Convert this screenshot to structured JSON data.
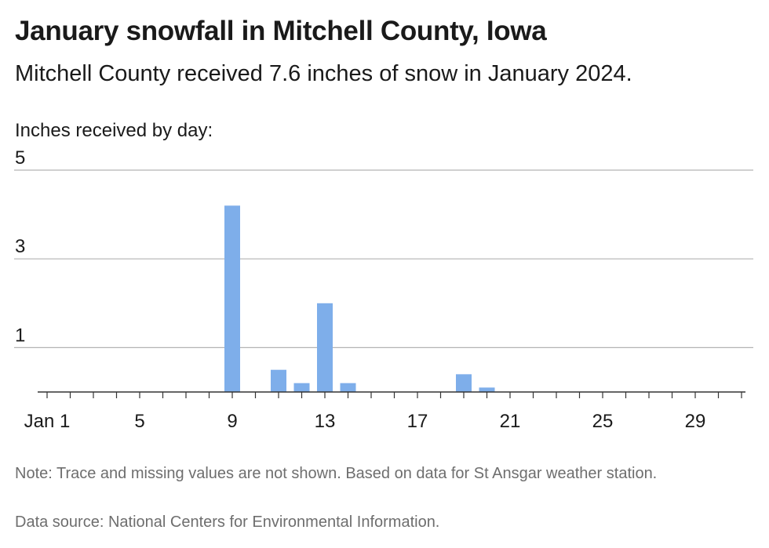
{
  "header": {
    "title": "January snowfall in Mitchell County, Iowa",
    "subtitle": "Mitchell County received 7.6 inches of snow in January 2024."
  },
  "footer": {
    "note": "Note: Trace and missing values are not shown. Based on data for St Ansgar weather station.",
    "source": "Data source: National Centers for Environmental Information."
  },
  "chart_data": {
    "type": "bar",
    "title": "January snowfall in Mitchell County, Iowa",
    "subtitle": "Mitchell County received 7.6 inches of snow in January 2024.",
    "ylabel": "Inches received by day:",
    "xlabel": "",
    "ylim": [
      0,
      5
    ],
    "xlim": [
      1,
      31
    ],
    "y_ticks": [
      1,
      3,
      5
    ],
    "x_ticks": [
      1,
      5,
      9,
      13,
      17,
      21,
      25,
      29
    ],
    "x_tick_labels": [
      "Jan 1",
      "5",
      "9",
      "13",
      "17",
      "21",
      "25",
      "29"
    ],
    "grid": true,
    "bar_color": "#7eaeea",
    "x": [
      9,
      11,
      12,
      13,
      14,
      19,
      20
    ],
    "values": [
      4.2,
      0.5,
      0.2,
      2.0,
      0.2,
      0.4,
      0.1
    ]
  }
}
